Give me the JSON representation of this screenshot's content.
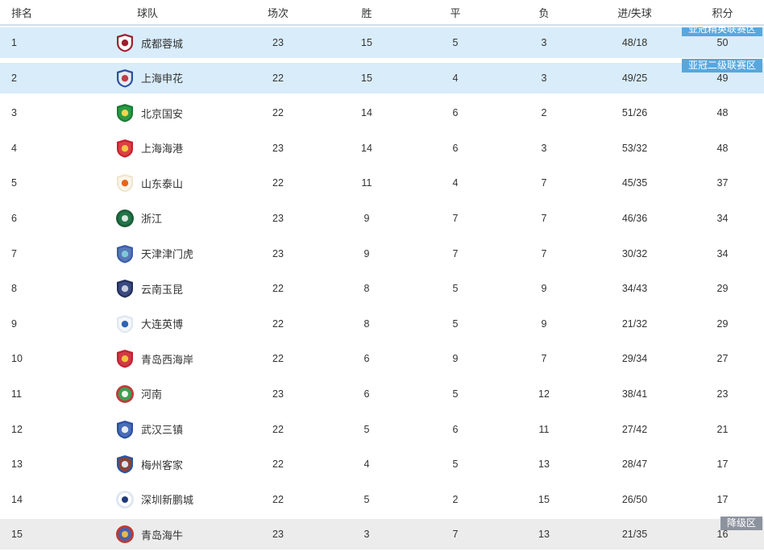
{
  "header": {
    "rank": "排名",
    "team": "球队",
    "played": "场次",
    "win": "胜",
    "draw": "平",
    "loss": "负",
    "goals": "进/失球",
    "points": "积分"
  },
  "zones": {
    "acl_elite": {
      "label": "亚冠精英联赛区",
      "color": "#58a7dc"
    },
    "acl_two": {
      "label": "亚冠二级联赛区",
      "color": "#58a7dc"
    },
    "relegation": {
      "label": "降级区",
      "color": "#8d939e"
    }
  },
  "colors": {
    "highlight_row": "#d8ecfa",
    "relegation_row": "#ececec",
    "header_border": "#d0dfec",
    "text": "#333333"
  },
  "rows": [
    {
      "rank": "1",
      "team": "成都蓉城",
      "played": "23",
      "win": "15",
      "draw": "5",
      "loss": "3",
      "goals": "48/18",
      "points": "50",
      "zone": "acl_elite",
      "row_style": "highlight",
      "badge_clip": true,
      "logo": {
        "shape": "shield",
        "colors": [
          "#9e1f2f",
          "#ffffff",
          "#9e1f2f"
        ]
      }
    },
    {
      "rank": "2",
      "team": "上海申花",
      "played": "22",
      "win": "15",
      "draw": "4",
      "loss": "3",
      "goals": "49/25",
      "points": "49",
      "zone": "acl_two",
      "row_style": "highlight",
      "logo": {
        "shape": "shield",
        "colors": [
          "#2a4fa2",
          "#e8ecf4",
          "#c23b48"
        ]
      }
    },
    {
      "rank": "3",
      "team": "北京国安",
      "played": "22",
      "win": "14",
      "draw": "6",
      "loss": "2",
      "goals": "51/26",
      "points": "48",
      "logo": {
        "shape": "shield",
        "colors": [
          "#1d7a34",
          "#2c9a44",
          "#f2d648"
        ]
      }
    },
    {
      "rank": "4",
      "team": "上海海港",
      "played": "23",
      "win": "14",
      "draw": "6",
      "loss": "3",
      "goals": "53/32",
      "points": "48",
      "logo": {
        "shape": "shield",
        "colors": [
          "#c8202f",
          "#d94243",
          "#f5c642"
        ]
      }
    },
    {
      "rank": "5",
      "team": "山东泰山",
      "played": "22",
      "win": "11",
      "draw": "4",
      "loss": "7",
      "goals": "45/35",
      "points": "37",
      "logo": {
        "shape": "shield",
        "colors": [
          "#efe6cf",
          "#faf6ea",
          "#e8641b"
        ]
      }
    },
    {
      "rank": "6",
      "team": "浙江",
      "played": "23",
      "win": "9",
      "draw": "7",
      "loss": "7",
      "goals": "46/36",
      "points": "34",
      "logo": {
        "shape": "circle",
        "colors": [
          "#1b5e38",
          "#24744a",
          "#d9e8de"
        ]
      }
    },
    {
      "rank": "7",
      "team": "天津津门虎",
      "played": "23",
      "win": "9",
      "draw": "7",
      "loss": "7",
      "goals": "30/32",
      "points": "34",
      "logo": {
        "shape": "shield",
        "colors": [
          "#3a5da8",
          "#5878b8",
          "#7ec8d8"
        ]
      }
    },
    {
      "rank": "8",
      "team": "云南玉昆",
      "played": "22",
      "win": "8",
      "draw": "5",
      "loss": "9",
      "goals": "34/43",
      "points": "29",
      "logo": {
        "shape": "shield",
        "colors": [
          "#232f5c",
          "#3a4a80",
          "#c8cde0"
        ]
      }
    },
    {
      "rank": "9",
      "team": "大连英博",
      "played": "22",
      "win": "8",
      "draw": "5",
      "loss": "9",
      "goals": "21/32",
      "points": "29",
      "logo": {
        "shape": "shield",
        "colors": [
          "#dfe7f2",
          "#f4f7fb",
          "#2b64b4"
        ]
      }
    },
    {
      "rank": "10",
      "team": "青岛西海岸",
      "played": "22",
      "win": "6",
      "draw": "9",
      "loss": "7",
      "goals": "29/34",
      "points": "27",
      "logo": {
        "shape": "shield",
        "colors": [
          "#c32032",
          "#d03a44",
          "#f0c33c"
        ]
      }
    },
    {
      "rank": "11",
      "team": "河南",
      "played": "23",
      "win": "6",
      "draw": "5",
      "loss": "12",
      "goals": "38/41",
      "points": "23",
      "logo": {
        "shape": "circle",
        "colors": [
          "#c03a3a",
          "#3f9e54",
          "#f2f5f0"
        ]
      }
    },
    {
      "rank": "12",
      "team": "武汉三镇",
      "played": "22",
      "win": "5",
      "draw": "6",
      "loss": "11",
      "goals": "27/42",
      "points": "21",
      "logo": {
        "shape": "shield",
        "colors": [
          "#2b4fa0",
          "#4a6cb8",
          "#e8eaf2"
        ]
      }
    },
    {
      "rank": "13",
      "team": "梅州客家",
      "played": "22",
      "win": "4",
      "draw": "5",
      "loss": "13",
      "goals": "28/47",
      "points": "17",
      "logo": {
        "shape": "shield",
        "colors": [
          "#2456a8",
          "#8a4438",
          "#e0e4ec"
        ]
      }
    },
    {
      "rank": "14",
      "team": "深圳新鹏城",
      "played": "22",
      "win": "5",
      "draw": "2",
      "loss": "15",
      "goals": "26/50",
      "points": "17",
      "logo": {
        "shape": "circle",
        "colors": [
          "#dee6f0",
          "#ffffff",
          "#1e3a7a"
        ]
      }
    },
    {
      "rank": "15",
      "team": "青岛海牛",
      "played": "23",
      "win": "3",
      "draw": "7",
      "loss": "13",
      "goals": "21/35",
      "points": "16",
      "zone": "relegation",
      "row_style": "relegation",
      "logo": {
        "shape": "circle",
        "colors": [
          "#bf3a30",
          "#4a5fa8",
          "#e8b84b"
        ]
      }
    }
  ]
}
